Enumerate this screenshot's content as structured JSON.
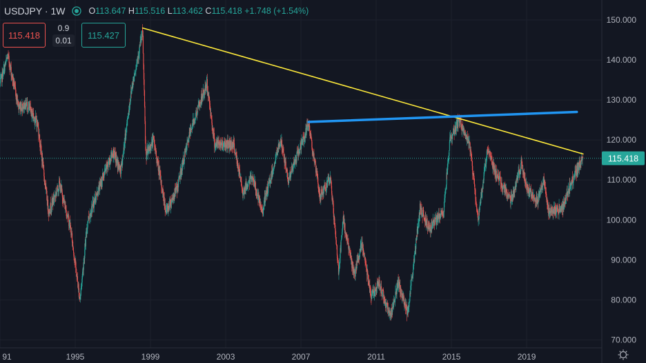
{
  "header": {
    "symbol": "USDJPY",
    "interval": "1W",
    "open_label": "O",
    "open": "113.647",
    "high_label": "H",
    "high": "115.516",
    "low_label": "L",
    "low": "113.462",
    "close_label": "C",
    "close": "115.418",
    "change": "+1.748",
    "change_pct": "(+1.54%)"
  },
  "trade": {
    "sell_price": "115.418",
    "spread": "0.9",
    "quantity": "0.01",
    "buy_price": "115.427"
  },
  "colors": {
    "background": "#131722",
    "up": "#26a69a",
    "down": "#ef5350",
    "trendline_down": "#ffeb3b",
    "trendline_flat": "#2196f3",
    "grid": "#1e222d"
  },
  "icons": [
    "eye-icon",
    "settings-icon"
  ],
  "chart_data": {
    "type": "candlestick",
    "symbol": "USDJPY",
    "interval": "1W",
    "ylim": [
      68,
      155
    ],
    "xlim": [
      "1991-01-01",
      "2022-12-31"
    ],
    "y_ticks": [
      "70.000",
      "80.000",
      "90.000",
      "100.000",
      "110.000",
      "120.000",
      "130.000",
      "140.000",
      "150.000"
    ],
    "x_ticks": [
      "91",
      "1995",
      "1999",
      "2003",
      "2007",
      "2011",
      "2015",
      "2019"
    ],
    "last_price_label": "115.418",
    "last_price": 115.418,
    "grid": true,
    "price_path": [
      [
        "1991-01-01",
        134
      ],
      [
        "1991-06-01",
        141
      ],
      [
        "1992-01-01",
        128
      ],
      [
        "1992-06-01",
        129
      ],
      [
        "1993-01-01",
        124
      ],
      [
        "1993-08-01",
        102
      ],
      [
        "1994-03-01",
        109
      ],
      [
        "1994-10-01",
        98
      ],
      [
        "1995-04-01",
        80
      ],
      [
        "1995-09-01",
        100
      ],
      [
        "1996-06-01",
        110
      ],
      [
        "1997-01-01",
        117
      ],
      [
        "1997-06-01",
        112
      ],
      [
        "1998-01-01",
        133
      ],
      [
        "1998-08-01",
        147
      ],
      [
        "1998-10-01",
        116
      ],
      [
        "1999-03-01",
        120
      ],
      [
        "1999-11-01",
        102
      ],
      [
        "2000-06-01",
        108
      ],
      [
        "2001-03-01",
        123
      ],
      [
        "2002-01-01",
        134
      ],
      [
        "2002-06-01",
        119
      ],
      [
        "2003-06-01",
        119
      ],
      [
        "2003-12-01",
        107
      ],
      [
        "2004-06-01",
        111
      ],
      [
        "2004-12-01",
        102
      ],
      [
        "2005-12-01",
        120
      ],
      [
        "2006-05-01",
        110
      ],
      [
        "2007-06-01",
        124
      ],
      [
        "2008-01-01",
        106
      ],
      [
        "2008-08-01",
        110
      ],
      [
        "2009-01-01",
        87
      ],
      [
        "2009-04-01",
        100
      ],
      [
        "2009-11-01",
        86
      ],
      [
        "2010-04-01",
        94
      ],
      [
        "2010-10-01",
        81
      ],
      [
        "2011-03-01",
        84
      ],
      [
        "2011-10-01",
        76
      ],
      [
        "2012-03-01",
        84
      ],
      [
        "2012-09-01",
        77
      ],
      [
        "2012-12-01",
        86
      ],
      [
        "2013-05-01",
        103
      ],
      [
        "2013-11-01",
        98
      ],
      [
        "2014-08-01",
        102
      ],
      [
        "2014-12-01",
        120
      ],
      [
        "2015-06-01",
        125
      ],
      [
        "2016-01-01",
        118
      ],
      [
        "2016-06-01",
        100
      ],
      [
        "2016-12-01",
        118
      ],
      [
        "2017-06-01",
        111
      ],
      [
        "2018-03-01",
        105
      ],
      [
        "2018-10-01",
        114
      ],
      [
        "2019-01-01",
        108
      ],
      [
        "2019-08-01",
        105
      ],
      [
        "2019-12-01",
        110
      ],
      [
        "2020-03-01",
        102
      ],
      [
        "2020-12-01",
        103
      ],
      [
        "2021-06-01",
        110
      ],
      [
        "2021-11-01",
        114
      ],
      [
        "2022-01-01",
        115.418
      ]
    ],
    "trendlines": [
      {
        "color": "#ffeb3b",
        "points": [
          [
            "1998-08-01",
            148
          ],
          [
            "2022-01-01",
            116.5
          ]
        ]
      },
      {
        "color": "#2196f3",
        "points": [
          [
            "2007-06-01",
            124.5
          ],
          [
            "2021-09-01",
            127
          ]
        ]
      }
    ]
  }
}
